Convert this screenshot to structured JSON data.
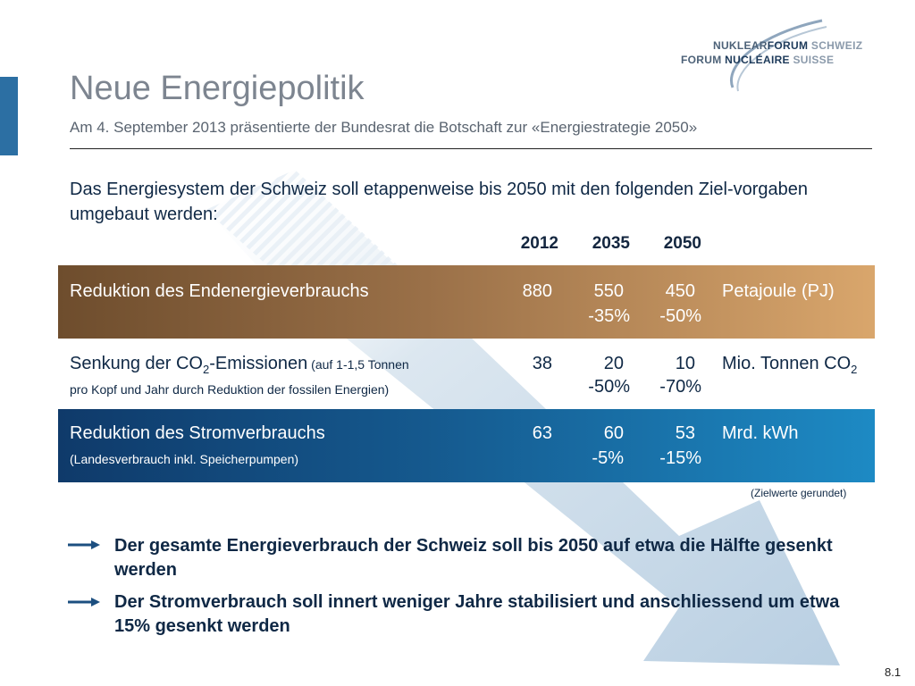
{
  "title": "Neue Energiepolitik",
  "subtitle": "Am 4. September 2013 präsentierte der Bundesrat die Botschaft zur «Energiestrategie 2050»",
  "logo": {
    "line1_a": "NUKLEAR",
    "line1_b": "FORUM",
    "line1_c": " SCHWEIZ",
    "line2_a": "FORUM ",
    "line2_b": "NUCLÉAIRE",
    "line2_c": " SUISSE"
  },
  "intro": "Das Energiesystem der Schweiz soll etappenweise bis 2050 mit den folgenden Ziel-vorgaben umgebaut werden:",
  "table": {
    "years": [
      "2012",
      "2035",
      "2050"
    ],
    "rows": [
      {
        "label": "Reduktion des Endenergieverbrauchs",
        "sub": "",
        "values": [
          "880",
          "550",
          "450"
        ],
        "changes": [
          "",
          "-35%",
          "-50%"
        ],
        "unit": "Petajoule (PJ)"
      },
      {
        "label_pre": "Senkung der CO",
        "label_sub": "2",
        "label_post": "-Emissionen",
        "label_note": " (auf 1-1,5 Tonnen",
        "sub": "pro Kopf und Jahr durch Reduktion der fossilen Energien)",
        "values": [
          "38",
          "20",
          "10"
        ],
        "changes": [
          "",
          "-50%",
          "-70%"
        ],
        "unit_pre": "Mio. Tonnen CO",
        "unit_sub": "2"
      },
      {
        "label": "Reduktion des Stromverbrauchs",
        "sub": "(Landesverbrauch inkl. Speicherpumpen)",
        "values": [
          "63",
          "60",
          "53"
        ],
        "changes": [
          "",
          "-5%",
          "-15%"
        ],
        "unit": "Mrd. kWh"
      }
    ],
    "footnote": "(Zielwerte gerundet)"
  },
  "bullets": [
    "Der gesamte Energieverbrauch der Schweiz soll bis 2050 auf etwa die Hälfte gesenkt werden",
    "Der Stromverbrauch soll innert weniger Jahre stabilisiert und anschliessend um etwa 15% gesenkt werden"
  ],
  "page_number": "8.1",
  "colors": {
    "accent_blue": "#2c6fa3",
    "row_brown": "#9a7048",
    "row_blue": "#15598e",
    "arrow": "#c9dbe9"
  }
}
